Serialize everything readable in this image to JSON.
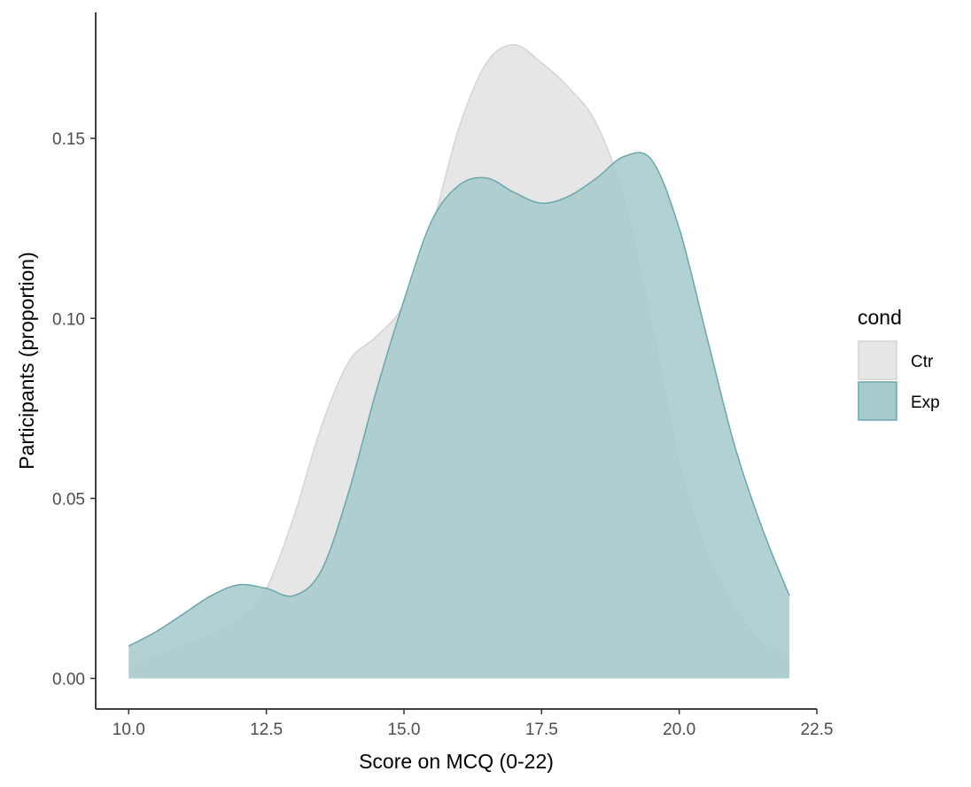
{
  "chart_data": {
    "type": "area",
    "subtype": "density",
    "xlabel": "Score on MCQ (0-22)",
    "ylabel": "Participants (proportion)",
    "xlim": [
      9.4,
      22.5
    ],
    "ylim": [
      -0.0085,
      0.185
    ],
    "x_ticks": [
      10.0,
      12.5,
      15.0,
      17.5,
      20.0,
      22.5
    ],
    "x_tick_labels": [
      "10.0",
      "12.5",
      "15.0",
      "17.5",
      "20.0",
      "22.5"
    ],
    "y_ticks": [
      0.0,
      0.05,
      0.1,
      0.15
    ],
    "y_tick_labels": [
      "0.00",
      "0.05",
      "0.10",
      "0.15"
    ],
    "grid": false,
    "legend": {
      "title": "cond",
      "position": "right"
    },
    "series": [
      {
        "name": "Ctr",
        "fill": "#e6e6e6",
        "stroke": "#d4d4d4",
        "x": [
          10.0,
          11.0,
          12.0,
          12.5,
          13.0,
          13.5,
          14.0,
          14.5,
          15.0,
          15.5,
          16.0,
          16.5,
          17.0,
          17.5,
          18.0,
          18.5,
          19.0,
          19.5,
          20.0,
          20.5,
          21.0,
          21.5,
          22.0
        ],
        "values": [
          0.003,
          0.009,
          0.016,
          0.025,
          0.045,
          0.07,
          0.088,
          0.095,
          0.104,
          0.125,
          0.153,
          0.171,
          0.176,
          0.171,
          0.164,
          0.154,
          0.133,
          0.098,
          0.06,
          0.035,
          0.02,
          0.01,
          0.006
        ]
      },
      {
        "name": "Exp",
        "fill": "#a6cbcc",
        "stroke": "#6aa7ab",
        "x": [
          10.0,
          10.5,
          11.0,
          11.5,
          12.0,
          12.5,
          13.0,
          13.5,
          14.0,
          14.5,
          15.0,
          15.5,
          16.0,
          16.5,
          17.0,
          17.5,
          18.0,
          18.5,
          19.0,
          19.5,
          20.0,
          20.5,
          21.0,
          21.5,
          22.0
        ],
        "values": [
          0.009,
          0.013,
          0.018,
          0.023,
          0.026,
          0.025,
          0.023,
          0.03,
          0.052,
          0.08,
          0.105,
          0.127,
          0.137,
          0.139,
          0.135,
          0.132,
          0.134,
          0.139,
          0.145,
          0.144,
          0.125,
          0.095,
          0.065,
          0.042,
          0.023
        ]
      }
    ]
  }
}
